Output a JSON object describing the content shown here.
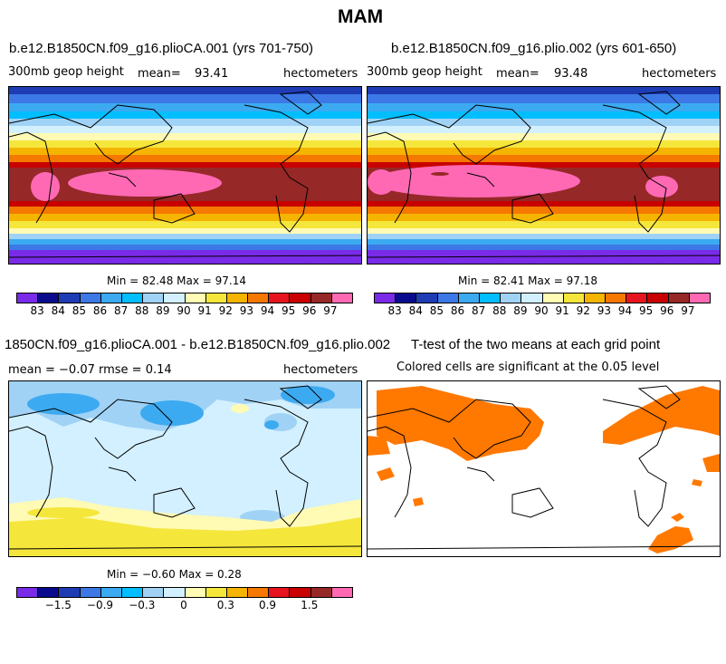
{
  "figure": {
    "title": "MAM"
  },
  "panels": [
    {
      "title": "b.e12.B1850CN.f09_g16.plioCA.001 (yrs 701-750)",
      "variable": "300mb geop height",
      "mean_label": "mean=",
      "mean_value": "93.41",
      "units": "hectometers",
      "minmax": "Min =  82.48 Max =  97.14"
    },
    {
      "title": "b.e12.B1850CN.f09_g16.plio.002 (yrs 601-650)",
      "variable": "300mb geop height",
      "mean_label": "mean=",
      "mean_value": "93.48",
      "units": "hectometers",
      "minmax": "Min =  82.41 Max =  97.18"
    },
    {
      "title": "1850CN.f09_g16.plioCA.001 - b.e12.B1850CN.f09_g16.plio.002",
      "stats": "mean =  −0.07    rmse =    0.14",
      "units": "hectometers",
      "minmax": "Min =  −0.60 Max =   0.28"
    },
    {
      "title": "T-test of the two means at each grid point",
      "subtitle": "Colored cells are significant at the 0.05 level"
    }
  ],
  "colorbars": {
    "abs_labels": [
      "83",
      "84",
      "85",
      "86",
      "87",
      "88",
      "89",
      "90",
      "91",
      "92",
      "93",
      "94",
      "95",
      "96",
      "97"
    ],
    "diff_labels": [
      "−1.5",
      "−0.9",
      "−0.3",
      "0",
      "0.3",
      "0.9",
      "1.5"
    ],
    "colors": [
      "#7a2be8",
      "#0a0a8c",
      "#1e3cb4",
      "#3c78e6",
      "#3caaf0",
      "#00beff",
      "#a0d2f5",
      "#d2f0ff",
      "#fffab4",
      "#f5e63c",
      "#f5b400",
      "#f57800",
      "#e6141e",
      "#c80000",
      "#962828",
      "#ff69b4"
    ]
  },
  "ttest": {
    "significant_color": "#ff7800"
  }
}
